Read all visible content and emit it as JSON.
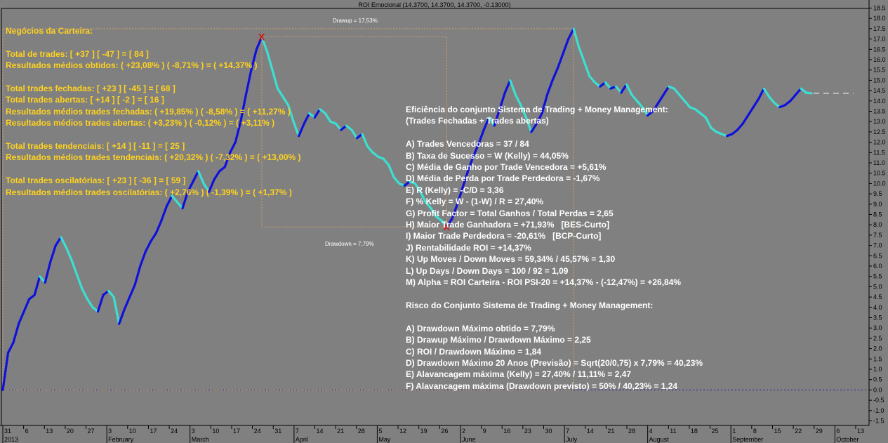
{
  "window": {
    "title": "ROI Emocional (14.3700, 14.3700, 14.3700, -0.13000)"
  },
  "annotations": {
    "drawup_label": "Drawup = 17,53%",
    "drawdown_label": "Drawdown = 7,79%",
    "peak_marker": "X",
    "trough_marker": "X"
  },
  "left_stats": {
    "lines": [
      "Negócios da Carteira:",
      "",
      "Total de trades: [ +37 ] [ -47 ] = [ 84 ]",
      "Resultados médios obtidos: ( +23,08% ) ( -8,71% ) = ( +14,37% )",
      "",
      "Total trades fechadas: [ +23 ] [ -45 ] = [ 68 ]",
      "Total trades abertas: [ +14 ] [ -2 ] = [ 16 ]",
      "Resultados médios trades fechadas: ( +19,85% ) ( -8,58% ) = ( +11,27% )",
      "Resultados médios trades abertas: ( +3,23% ) ( -0,12% ) = ( +3,11% )",
      "",
      "Total trades tendenciais: [ +14 ] [ -11 ] = [ 25 ]",
      "Resultados médios trades tendenciais: ( +20,32% ) ( -7,32% ) = ( +13,00% )",
      "",
      "Total trades oscilatórias: [ +23 ] [ -36 ] = [ 59 ]",
      "Resultados médios trades oscilatórias: ( +2,76% ) ( -1,39% ) = ( +1,37% )"
    ]
  },
  "right_stats": {
    "lines": [
      "Eficiência do conjunto Sistema de Trading + Money Management:",
      "(Trades Fechadas + Trades abertas)",
      "",
      "A) Trades Vencedoras = 37 / 84",
      "B) Taxa de Sucesso = W (Kelly) = 44,05%",
      "C) Média de Ganho por Trade Vencedora = +5,61%",
      "D) Média de Perda por Trade Perdedora = -1,67%",
      "E) R (Kelly) = -C/D = 3,36",
      "F) % Kelly = W - (1-W) / R = 27,40%",
      "G) Profit Factor = Total Ganhos / Total Perdas = 2,65",
      "H) Maior Trade Ganhadora = +71,93%   [BES-Curto]",
      "I) Maior Trade Perdedora = -20,61%   [BCP-Curto]",
      "J) Rentabilidade ROI = +14,37%",
      "K) Up Moves / Down Moves = 59,34% / 45,57% = 1,30",
      "L) Up Days / Down Days = 100 / 92 = 1,09",
      "M) Alpha = ROI Carteira - ROI PSI-20 = +14,37% - (-12,47%) = +26,84%",
      "",
      "Risco do Conjunto Sistema de Trading + Money Management:",
      "",
      "A) Drawdown Máximo obtido = 7,79%",
      "B) Drawup Máximo / Drawdown Máximo = 2,25",
      "C) ROI / Drawdown Máximo = 1,84",
      "D) Drawdown Máximo 20 Anos (Previsão) = Sqrt(20/0,75) x 7,79% = 40,23%",
      "E) Alavancagem máxima (Kelly) = 27,40% / 11,11% = 2,47",
      "F) Alavancagem máxima (Drawdown previsto) = 50% / 40,23% = 1,24"
    ]
  },
  "chart_data": {
    "type": "line",
    "title": "ROI Emocional (14.3700, 14.3700, 14.3700, -0.13000)",
    "xlabel": "",
    "ylabel": "",
    "ylim": [
      -1.5,
      18.5
    ],
    "y_ticks": [
      "-1.5",
      "-1.0",
      "-0.5",
      "0.0",
      "0.5",
      "1.0",
      "1.5",
      "2.0",
      "2.5",
      "3.0",
      "3.5",
      "4.0",
      "4.5",
      "5.0",
      "5.5",
      "6.0",
      "6.5",
      "7.0",
      "7.5",
      "8.0",
      "8.5",
      "9.0",
      "9.5",
      "10.0",
      "10.5",
      "11.0",
      "11.5",
      "12.0",
      "12.5",
      "13.0",
      "13.5",
      "14.0",
      "14.5",
      "15.0",
      "15.5",
      "16.0",
      "16.5",
      "17.0",
      "17.5",
      "18.0",
      "18.5"
    ],
    "x_day_ticks": [
      "31",
      "6",
      "13",
      "20",
      "27",
      "3",
      "10",
      "17",
      "24",
      "3",
      "10",
      "17",
      "24",
      "31",
      "7",
      "14",
      "21",
      "28",
      "5",
      "12",
      "19",
      "26",
      "2",
      "9",
      "16",
      "23",
      "30",
      "7",
      "14",
      "21",
      "28",
      "4",
      "11",
      "18",
      "25",
      "1",
      "8",
      "15",
      "22",
      "29",
      "6",
      "13"
    ],
    "x_month_labels": [
      "2013",
      "February",
      "March",
      "April",
      "May",
      "June",
      "July",
      "August",
      "September",
      "October"
    ],
    "series": [
      {
        "values": [
          0.0,
          1.8,
          2.3,
          3.2,
          3.8,
          4.4,
          4.6,
          5.5,
          5.2,
          6.2,
          7.0,
          7.4,
          6.9,
          6.3,
          5.6,
          4.9,
          4.4,
          4.0,
          3.8,
          4.6,
          4.8,
          4.5,
          3.2,
          3.9,
          4.5,
          5.1,
          6.0,
          6.7,
          7.2,
          7.6,
          8.2,
          8.9,
          9.4,
          9.1,
          8.8,
          9.6,
          10.1,
          10.6,
          10.0,
          9.6,
          10.2,
          10.6,
          10.8,
          11.5,
          12.0,
          13.0,
          14.3,
          15.5,
          16.5,
          17.1,
          16.4,
          15.5,
          14.6,
          14.2,
          13.8,
          13.0,
          12.3,
          12.9,
          13.4,
          13.2,
          13.6,
          13.4,
          13.0,
          12.9,
          12.6,
          12.8,
          12.6,
          12.2,
          12.4,
          11.8,
          11.5,
          11.3,
          11.2,
          10.9,
          10.3,
          10.0,
          9.9,
          10.1,
          10.0,
          9.6,
          9.1,
          8.8,
          8.4,
          8.2,
          7.9,
          8.3,
          9.0,
          9.8,
          10.6,
          11.3,
          11.9,
          12.6,
          13.2,
          12.8,
          13.6,
          14.4,
          15.0,
          14.3,
          13.8,
          13.2,
          12.5,
          12.9,
          13.4,
          14.3,
          15.0,
          15.6,
          16.3,
          17.0,
          17.5,
          16.6,
          15.9,
          15.2,
          14.9,
          14.7,
          14.9,
          14.6,
          14.7,
          14.4,
          14.8,
          14.3,
          14.0,
          13.7,
          13.3,
          13.5,
          13.9,
          14.3,
          14.7,
          14.6,
          14.3,
          14.0,
          13.7,
          13.6,
          13.4,
          13.2,
          12.7,
          12.5,
          12.4,
          12.3,
          12.4,
          12.6,
          12.9,
          13.3,
          13.7,
          14.1,
          14.6,
          14.2,
          13.9,
          13.7,
          13.8,
          14.0,
          14.3,
          14.6,
          14.4,
          14.37
        ]
      }
    ],
    "drawup_max_percent": 17.53,
    "drawdown_max_percent": 7.79,
    "last_value": 14.37,
    "colors": {
      "up": "#1010dc",
      "down": "#3ce0d2",
      "baseline": "#1c1ca0",
      "marker": "#e01010",
      "box": "#e8a868"
    },
    "grid": false
  }
}
